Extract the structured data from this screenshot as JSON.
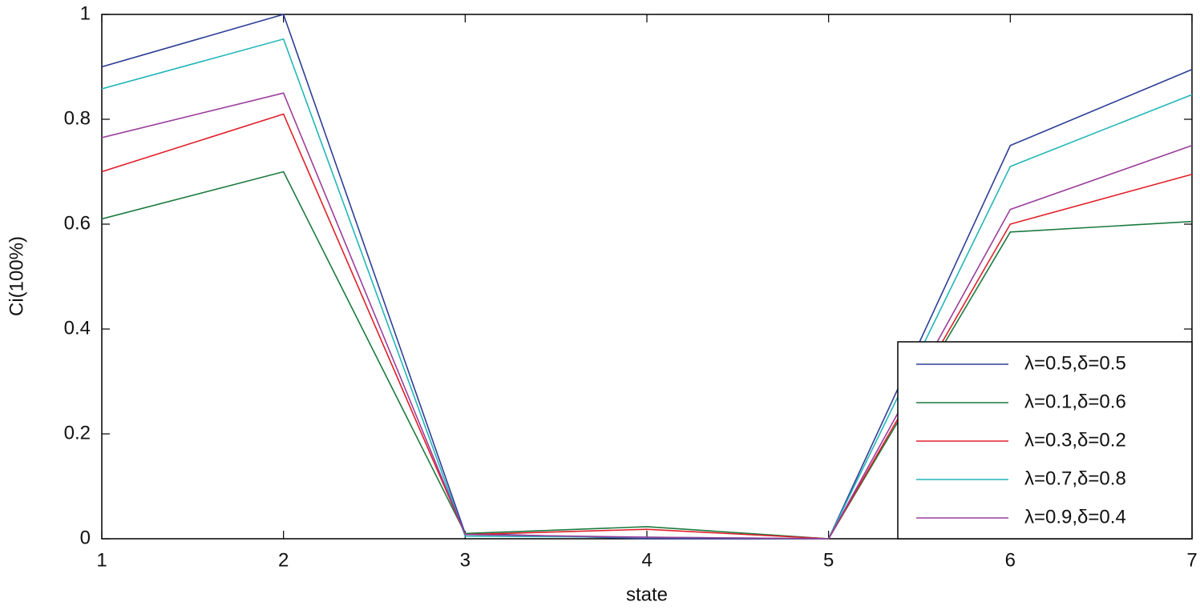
{
  "chart_data": {
    "type": "line",
    "x_label": "state",
    "y_label": "Ci(100%)",
    "x": [
      1,
      2,
      3,
      4,
      5,
      6,
      7
    ],
    "xlim": [
      1,
      7
    ],
    "xticks": [
      1,
      2,
      3,
      4,
      5,
      6,
      7
    ],
    "ylim": [
      0,
      1
    ],
    "yticks": [
      0,
      0.2,
      0.4,
      0.6,
      0.8,
      1
    ],
    "grid": false,
    "legend": "lower right",
    "series": [
      {
        "name": "λ=0.5,δ=0.5",
        "color": "#2e3e95",
        "values": [
          0.9,
          1.0,
          0.01,
          0.0,
          0.0,
          0.75,
          0.895
        ]
      },
      {
        "name": "λ=0.1,δ=0.6",
        "color": "#1b7a3f",
        "values": [
          0.61,
          0.7,
          0.01,
          0.023,
          0.0,
          0.585,
          0.605
        ]
      },
      {
        "name": "λ=0.3,δ=0.2",
        "color": "#e0202a",
        "values": [
          0.7,
          0.81,
          0.008,
          0.018,
          0.0,
          0.6,
          0.695
        ]
      },
      {
        "name": "λ=0.7,δ=0.8",
        "color": "#22b6b8",
        "values": [
          0.858,
          0.953,
          0.005,
          0.003,
          0.0,
          0.71,
          0.847
        ]
      },
      {
        "name": "λ=0.9,δ=0.4",
        "color": "#9a3e9b",
        "values": [
          0.765,
          0.85,
          0.008,
          0.003,
          0.0,
          0.628,
          0.75
        ]
      }
    ]
  }
}
